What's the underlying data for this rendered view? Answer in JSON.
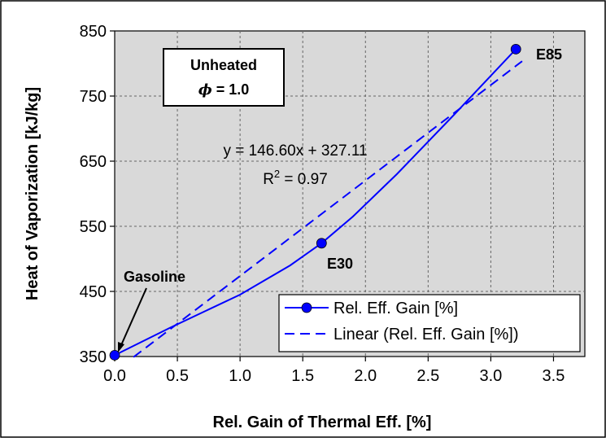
{
  "chart_data": {
    "type": "line",
    "xlabel": "Rel. Gain of Thermal Eff. [%]",
    "ylabel": "Heat of Vaporization [kJ/kg]",
    "xlim": [
      0.0,
      3.75
    ],
    "ylim": [
      350,
      850
    ],
    "x_ticks": [
      "0.0",
      "0.5",
      "1.0",
      "1.5",
      "2.0",
      "2.5",
      "3.0",
      "3.5"
    ],
    "x_tick_values": [
      0.0,
      0.5,
      1.0,
      1.5,
      2.0,
      2.5,
      3.0,
      3.5
    ],
    "y_ticks": [
      "350",
      "450",
      "550",
      "650",
      "750",
      "850"
    ],
    "y_tick_values": [
      350,
      450,
      550,
      650,
      750,
      850
    ],
    "grid": true,
    "background_color": "#d9d9d9",
    "series_color": "#0000ff",
    "series": [
      {
        "name": "Rel. Eff. Gain [%]",
        "style": "solid-with-markers",
        "points": [
          {
            "x": 0.0,
            "y": 352,
            "label": "Gasoline"
          },
          {
            "x": 1.65,
            "y": 524,
            "label": "E30"
          },
          {
            "x": 3.2,
            "y": 822,
            "label": "E85"
          }
        ],
        "curve": [
          {
            "x": 0.0,
            "y": 352
          },
          {
            "x": 0.45,
            "y": 395
          },
          {
            "x": 1.0,
            "y": 445
          },
          {
            "x": 1.4,
            "y": 490
          },
          {
            "x": 1.65,
            "y": 524
          },
          {
            "x": 1.9,
            "y": 565
          },
          {
            "x": 2.25,
            "y": 630
          },
          {
            "x": 2.7,
            "y": 720
          },
          {
            "x": 3.2,
            "y": 822
          }
        ]
      },
      {
        "name": "Linear (Rel. Eff. Gain [%])",
        "style": "dashed",
        "fit": {
          "slope": 146.6,
          "intercept": 327.11
        },
        "x_range": [
          0.15,
          3.25
        ]
      }
    ],
    "annotations": {
      "condition_line1": "Unheated",
      "condition_phi": "ϕ",
      "condition_rest": " = 1.0",
      "equation": "y = 146.60x + 327.11",
      "r2_prefix": "R",
      "r2_sup": "2",
      "r2_suffix": " = 0.97",
      "gasoline": "Gasoline",
      "e30": "E30",
      "e85": "E85"
    },
    "legend": {
      "placement": "bottom-right",
      "entries": [
        "Rel. Eff. Gain [%]",
        "Linear (Rel. Eff. Gain [%])"
      ]
    }
  }
}
